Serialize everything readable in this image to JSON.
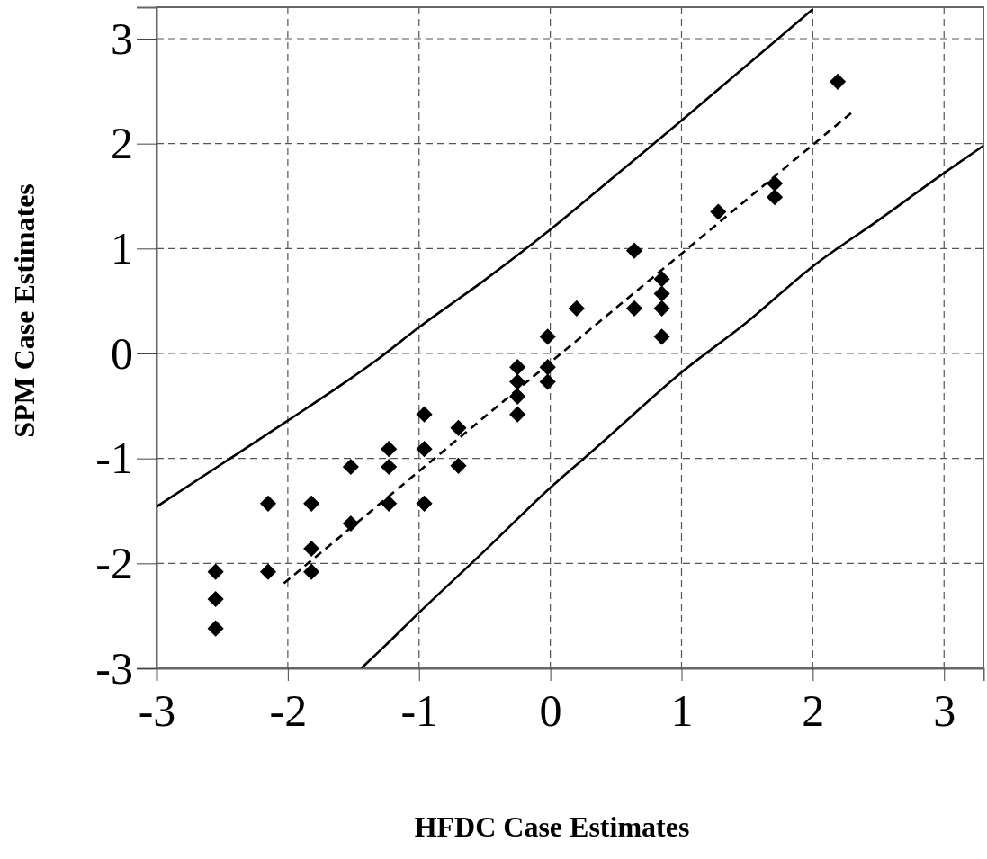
{
  "chart_data": {
    "type": "scatter",
    "xlabel": "HFDC Case Estimates",
    "ylabel": "SPM Case Estimates",
    "xlim": [
      -3,
      3.3
    ],
    "ylim": [
      -3,
      3.3
    ],
    "xticks": [
      -3,
      -2,
      -1,
      0,
      1,
      2,
      3
    ],
    "yticks": [
      -3,
      -2,
      -1,
      0,
      1,
      2,
      3
    ],
    "grid": true,
    "series": [
      {
        "color": "#000000",
        "marker": "diamond",
        "x": [
          -2.55,
          -2.55,
          -2.55,
          -2.15,
          -2.15,
          -1.82,
          -1.82,
          -1.82,
          -1.52,
          -1.52,
          -1.23,
          -1.23,
          -1.23,
          -0.96,
          -0.96,
          -0.96,
          -0.7,
          -0.7,
          -0.25,
          -0.25,
          -0.25,
          -0.25,
          -0.02,
          -0.02,
          -0.02,
          0.2,
          0.64,
          0.64,
          0.85,
          0.85,
          0.85,
          0.85,
          1.28,
          1.71,
          1.71,
          2.19
        ],
        "values": [
          -2.08,
          -2.34,
          -2.62,
          -1.43,
          -2.08,
          -1.43,
          -1.86,
          -2.08,
          -1.08,
          -1.62,
          -0.91,
          -1.08,
          -1.43,
          -0.58,
          -0.91,
          -1.43,
          -0.71,
          -1.07,
          -0.13,
          -0.27,
          -0.41,
          -0.58,
          0.16,
          -0.13,
          -0.27,
          0.43,
          0.98,
          0.43,
          0.71,
          0.57,
          0.43,
          0.16,
          1.35,
          1.62,
          1.49,
          2.59
        ]
      },
      {
        "type": "line",
        "color": "#000000",
        "line_style": "dashed",
        "marker": "none",
        "x": [
          -2.03,
          2.31
        ],
        "values": [
          -2.19,
          2.31
        ]
      },
      {
        "type": "line",
        "color": "#000000",
        "line_style": "solid",
        "marker": "none",
        "x": [
          -3,
          -2.5,
          -2,
          -1.5,
          -1.32,
          -1,
          -0.5,
          0,
          0.5,
          1,
          1.5,
          2
        ],
        "values": [
          -1.46,
          -1.05,
          -0.64,
          -0.22,
          -0.06,
          0.25,
          0.7,
          1.18,
          1.7,
          2.22,
          2.75,
          3.28
        ]
      },
      {
        "type": "line",
        "color": "#000000",
        "line_style": "solid",
        "marker": "none",
        "x": [
          -1.44,
          -1.28,
          -1,
          -0.5,
          0,
          0.33,
          0.5,
          1,
          1.5,
          2,
          2.5,
          3,
          3.3
        ],
        "values": [
          -3,
          -2.81,
          -2.47,
          -1.88,
          -1.28,
          -0.92,
          -0.73,
          -0.18,
          0.3,
          0.83,
          1.27,
          1.72,
          1.98
        ]
      }
    ]
  }
}
